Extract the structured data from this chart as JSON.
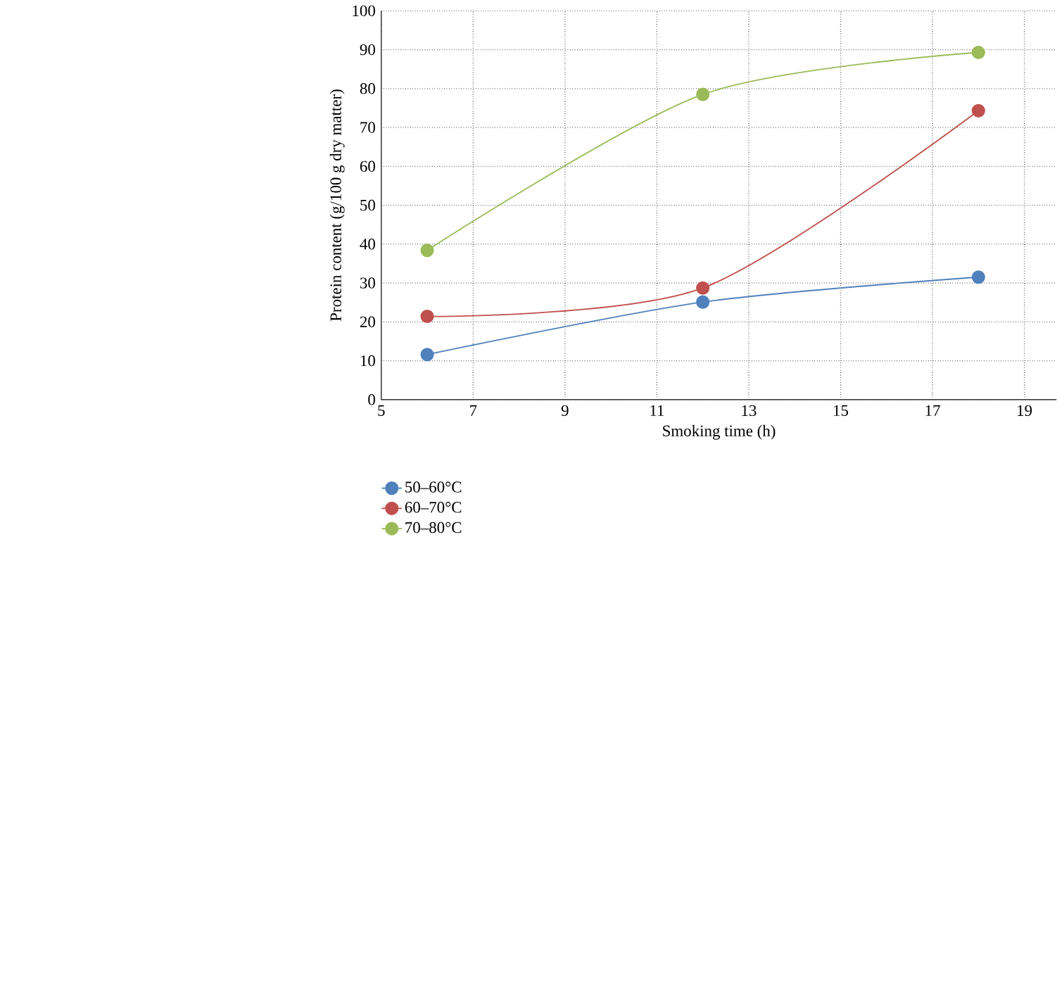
{
  "chart_data": {
    "type": "line",
    "xlabel": "Smoking time (h)",
    "ylabel": "Protein content (g/100 g dry matter)",
    "x": [
      6,
      12,
      18
    ],
    "series": [
      {
        "name": "50–60°C",
        "color": "#4f81bd",
        "values": [
          11.6,
          25.1,
          31.5
        ]
      },
      {
        "name": "60–70°C",
        "color": "#c0504d",
        "values": [
          21.4,
          28.7,
          74.3
        ]
      },
      {
        "name": "70–80°C",
        "color": "#9bbb59",
        "values": [
          38.4,
          78.5,
          89.3
        ]
      }
    ],
    "xlim": [
      5,
      19.7
    ],
    "xticks": [
      5,
      7,
      9,
      11,
      13,
      15,
      17,
      19
    ],
    "ylim": [
      0,
      100
    ],
    "yticks": [
      0,
      10,
      20,
      30,
      40,
      50,
      60,
      70,
      80,
      90,
      100
    ],
    "grid": true,
    "legend": "bottom left",
    "marker": "circle",
    "line_style": "solid"
  }
}
